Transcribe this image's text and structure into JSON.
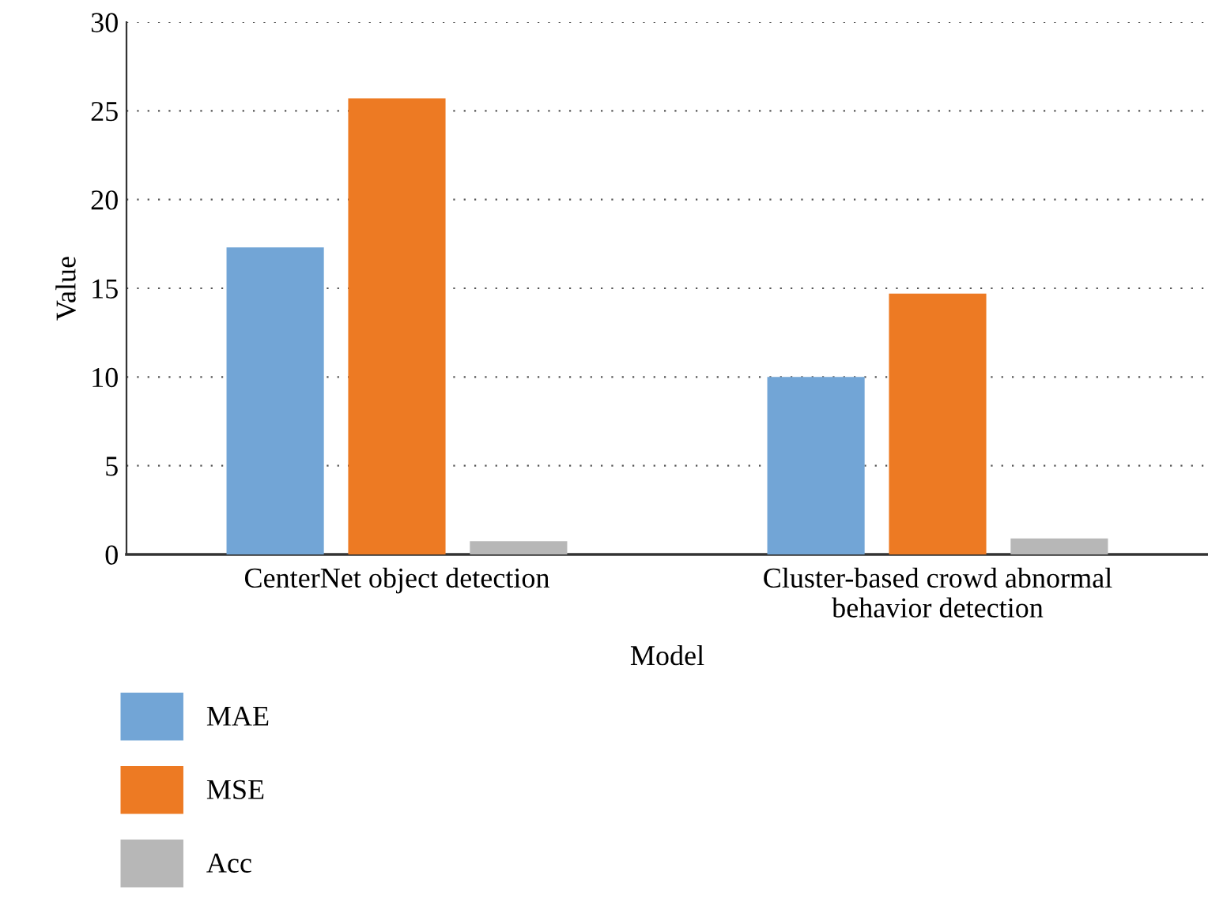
{
  "chart_data": {
    "type": "bar",
    "categories": [
      "CenterNet object detection",
      "Cluster-based crowd abnormal behavior detection"
    ],
    "series": [
      {
        "name": "MAE",
        "color": "#72a5d6",
        "values": [
          17.3,
          10.0
        ]
      },
      {
        "name": "MSE",
        "color": "#ed7a23",
        "values": [
          25.7,
          14.7
        ]
      },
      {
        "name": "Acc",
        "color": "#b7b7b7",
        "values": [
          0.75,
          0.9
        ]
      }
    ],
    "xlabel": "Model",
    "ylabel": "Value",
    "ylim": [
      0,
      30
    ],
    "yticks": [
      0,
      5,
      10,
      15,
      20,
      25,
      30
    ],
    "grid": "y",
    "legend": "bottom left"
  }
}
